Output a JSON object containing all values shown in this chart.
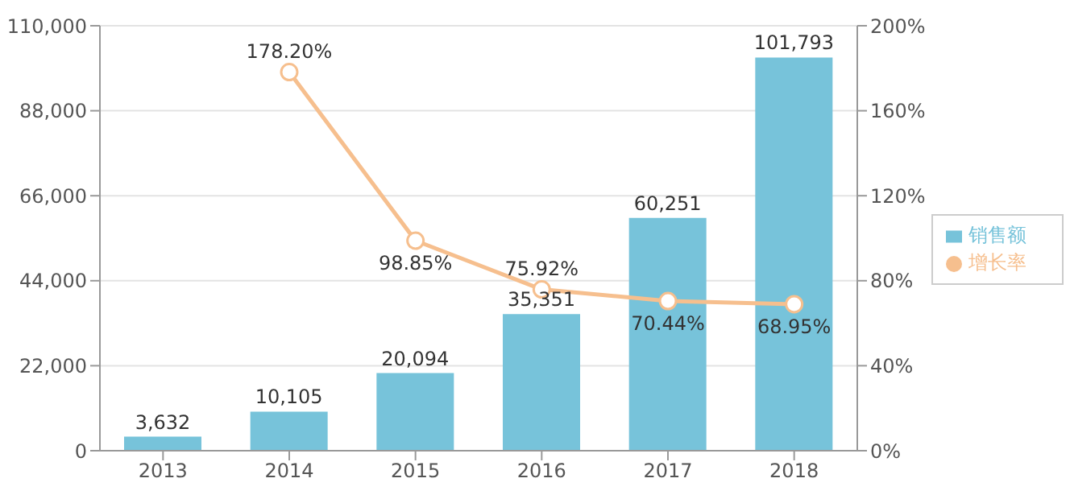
{
  "chart_data": {
    "type": "bar",
    "categories": [
      "2013",
      "2014",
      "2015",
      "2016",
      "2017",
      "2018"
    ],
    "series": [
      {
        "name": "销售额",
        "color": "#77c3da",
        "values": [
          3632,
          10105,
          20094,
          35351,
          60251,
          101793
        ],
        "value_labels": [
          "3,632",
          "10,105",
          "20,094",
          "35,351",
          "60,251",
          "101,793"
        ]
      },
      {
        "name": "增长率",
        "type": "line",
        "axis": "y2",
        "color": "#f6bf8e",
        "values": [
          null,
          178.2,
          98.85,
          75.92,
          70.44,
          68.95
        ],
        "value_labels": [
          null,
          "178.20%",
          "98.85%",
          "75.92%",
          "70.44%",
          "68.95%"
        ]
      }
    ],
    "ylim": [
      0,
      110000
    ],
    "yticks": [
      {
        "value": 0,
        "label": "0"
      },
      {
        "value": 22000,
        "label": "22,000"
      },
      {
        "value": 44000,
        "label": "44,000"
      },
      {
        "value": 66000,
        "label": "66,000"
      },
      {
        "value": 88000,
        "label": "88,000"
      },
      {
        "value": 110000,
        "label": "110,000"
      }
    ],
    "y2lim": [
      0,
      200
    ],
    "y2ticks": [
      {
        "value": 0,
        "label": "0%"
      },
      {
        "value": 40,
        "label": "40%"
      },
      {
        "value": 80,
        "label": "80%"
      },
      {
        "value": 120,
        "label": "120%"
      },
      {
        "value": 160,
        "label": "160%"
      },
      {
        "value": 200,
        "label": "200%"
      }
    ],
    "grid": "y",
    "legend": "right",
    "marker": "circle"
  }
}
